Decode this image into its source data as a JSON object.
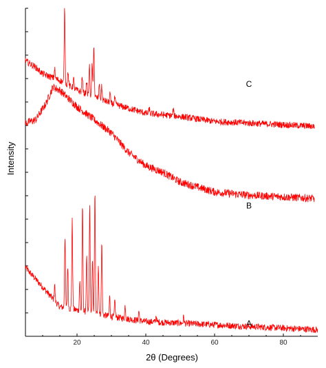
{
  "chart_data": {
    "type": "line",
    "xlabel": "2θ (Degrees)",
    "ylabel": "Intensity",
    "xlim": [
      5,
      90
    ],
    "x_ticks": [
      "20",
      "40",
      "60",
      "80"
    ],
    "x_tick_values": [
      20,
      40,
      60,
      80
    ],
    "y_ticks_labeled": false,
    "line_color": "#ff0000",
    "series": [
      {
        "name": "A",
        "description_points": [
          [
            5,
            0.21
          ],
          [
            10,
            0.15
          ],
          [
            15,
            0.09
          ],
          [
            20,
            0.08
          ],
          [
            30,
            0.06
          ],
          [
            40,
            0.045
          ],
          [
            60,
            0.035
          ],
          [
            80,
            0.025
          ],
          [
            90,
            0.02
          ]
        ],
        "peaks": [
          [
            13.5,
            0.05
          ],
          [
            16.5,
            0.22
          ],
          [
            17.3,
            0.13
          ],
          [
            18.6,
            0.27
          ],
          [
            20.8,
            0.09
          ],
          [
            21.6,
            0.32
          ],
          [
            22.8,
            0.17
          ],
          [
            23.7,
            0.33
          ],
          [
            24.5,
            0.16
          ],
          [
            25.2,
            0.37
          ],
          [
            26.2,
            0.15
          ],
          [
            27.2,
            0.22
          ],
          [
            29.5,
            0.06
          ],
          [
            31.0,
            0.05
          ],
          [
            34.0,
            0.04
          ],
          [
            38.0,
            0.03
          ],
          [
            43.0,
            0.02
          ],
          [
            51.0,
            0.02
          ]
        ]
      },
      {
        "name": "B",
        "description_points": [
          [
            5,
            0.65
          ],
          [
            8,
            0.66
          ],
          [
            11,
            0.71
          ],
          [
            13,
            0.76
          ],
          [
            15,
            0.75
          ],
          [
            20,
            0.7
          ],
          [
            25,
            0.66
          ],
          [
            30,
            0.62
          ],
          [
            35,
            0.56
          ],
          [
            40,
            0.52
          ],
          [
            45,
            0.5
          ],
          [
            50,
            0.47
          ],
          [
            60,
            0.44
          ],
          [
            70,
            0.43
          ],
          [
            80,
            0.425
          ],
          [
            89,
            0.42
          ]
        ]
      },
      {
        "name": "C",
        "description_points": [
          [
            5,
            0.84
          ],
          [
            8,
            0.82
          ],
          [
            10,
            0.8
          ],
          [
            15,
            0.78
          ],
          [
            20,
            0.75
          ],
          [
            25,
            0.73
          ],
          [
            30,
            0.71
          ],
          [
            40,
            0.68
          ],
          [
            50,
            0.67
          ],
          [
            60,
            0.655
          ],
          [
            70,
            0.65
          ],
          [
            80,
            0.645
          ],
          [
            89,
            0.64
          ]
        ],
        "peaks": [
          [
            13.5,
            0.03
          ],
          [
            16.4,
            0.23
          ],
          [
            17.4,
            0.04
          ],
          [
            19.0,
            0.03
          ],
          [
            21.5,
            0.05
          ],
          [
            22.8,
            0.04
          ],
          [
            23.6,
            0.09
          ],
          [
            24.4,
            0.1
          ],
          [
            24.9,
            0.16
          ],
          [
            26.5,
            0.05
          ],
          [
            27.2,
            0.04
          ],
          [
            29.6,
            0.03
          ],
          [
            31.0,
            0.02
          ],
          [
            41.0,
            0.015
          ],
          [
            48.0,
            0.02
          ]
        ]
      }
    ],
    "labels": [
      {
        "text": "A",
        "series": "A"
      },
      {
        "text": "B",
        "series": "B"
      },
      {
        "text": "C",
        "series": "C"
      }
    ]
  }
}
